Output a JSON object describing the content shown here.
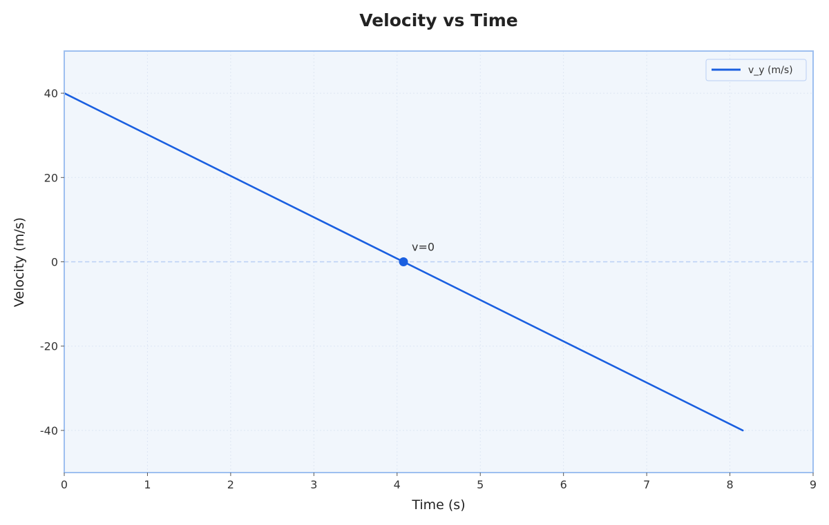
{
  "chart_data": {
    "type": "line",
    "title": "Velocity vs Time",
    "xlabel": "Time (s)",
    "ylabel": "Velocity (m/s)",
    "xlim": [
      0,
      9
    ],
    "ylim": [
      -50,
      50
    ],
    "xticks": [
      0,
      1,
      2,
      3,
      4,
      5,
      6,
      7,
      8,
      9
    ],
    "yticks": [
      -40,
      -20,
      0,
      20,
      40
    ],
    "ytick_labels": [
      "-40",
      "-20",
      "0",
      "20",
      "40"
    ],
    "grid": true,
    "legend_position": "top-right",
    "series": [
      {
        "name": "v_y (m/s)",
        "color": "#1a5fe0",
        "x": [
          0,
          8.155
        ],
        "y": [
          40,
          -40
        ]
      }
    ],
    "reference_line": {
      "y": 0,
      "style": "dashed",
      "color": "#b9cff5"
    },
    "annotations": [
      {
        "text": "v=0",
        "x": 4.077,
        "y": 0,
        "marker_color": "#1a5fe0"
      }
    ],
    "colors": {
      "plot_background": "#f1f6fc",
      "frame": "#9dbff0",
      "grid": "#dde6f3"
    }
  }
}
